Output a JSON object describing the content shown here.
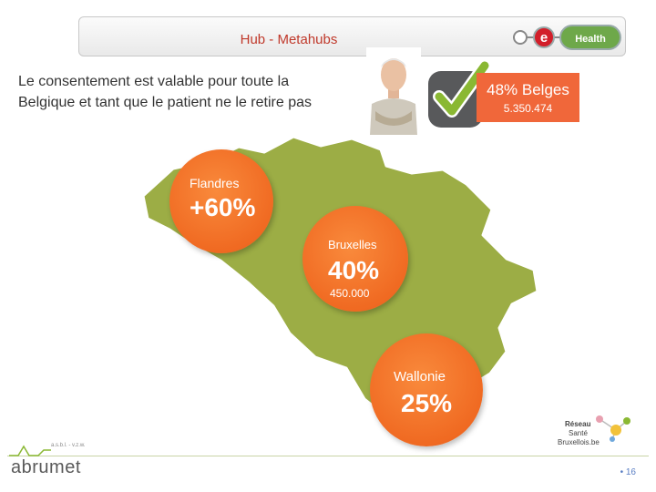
{
  "header": {
    "title": "Hub - Metahubs",
    "logo_letter": "e",
    "logo_word": "Health"
  },
  "intro": {
    "line1": "Le consentement est valable pour toute la",
    "line2": "Belgique et tant que le patient ne le retire pas"
  },
  "stat": {
    "percent_label": "48% Belges",
    "count": "5.350.474"
  },
  "regions": {
    "flandres": {
      "name": "Flandres",
      "value": "+60%"
    },
    "bruxelles": {
      "name": "Bruxelles",
      "value": "40%",
      "count": "450.000"
    },
    "wallonie": {
      "name": "Wallonie",
      "value": "25%"
    }
  },
  "logos": {
    "reseau_line1": "Réseau",
    "reseau_line2": "Santé",
    "reseau_line3": "Bruxellois",
    "reseau_suffix": ".be",
    "abrumet_small": "a.s.b.l. - v.z.w.",
    "abrumet": "abrumet"
  },
  "footer": {
    "page": "• 16"
  },
  "colors": {
    "map": "#9cad45",
    "accent": "#f0673a",
    "check": "#8ab833"
  }
}
